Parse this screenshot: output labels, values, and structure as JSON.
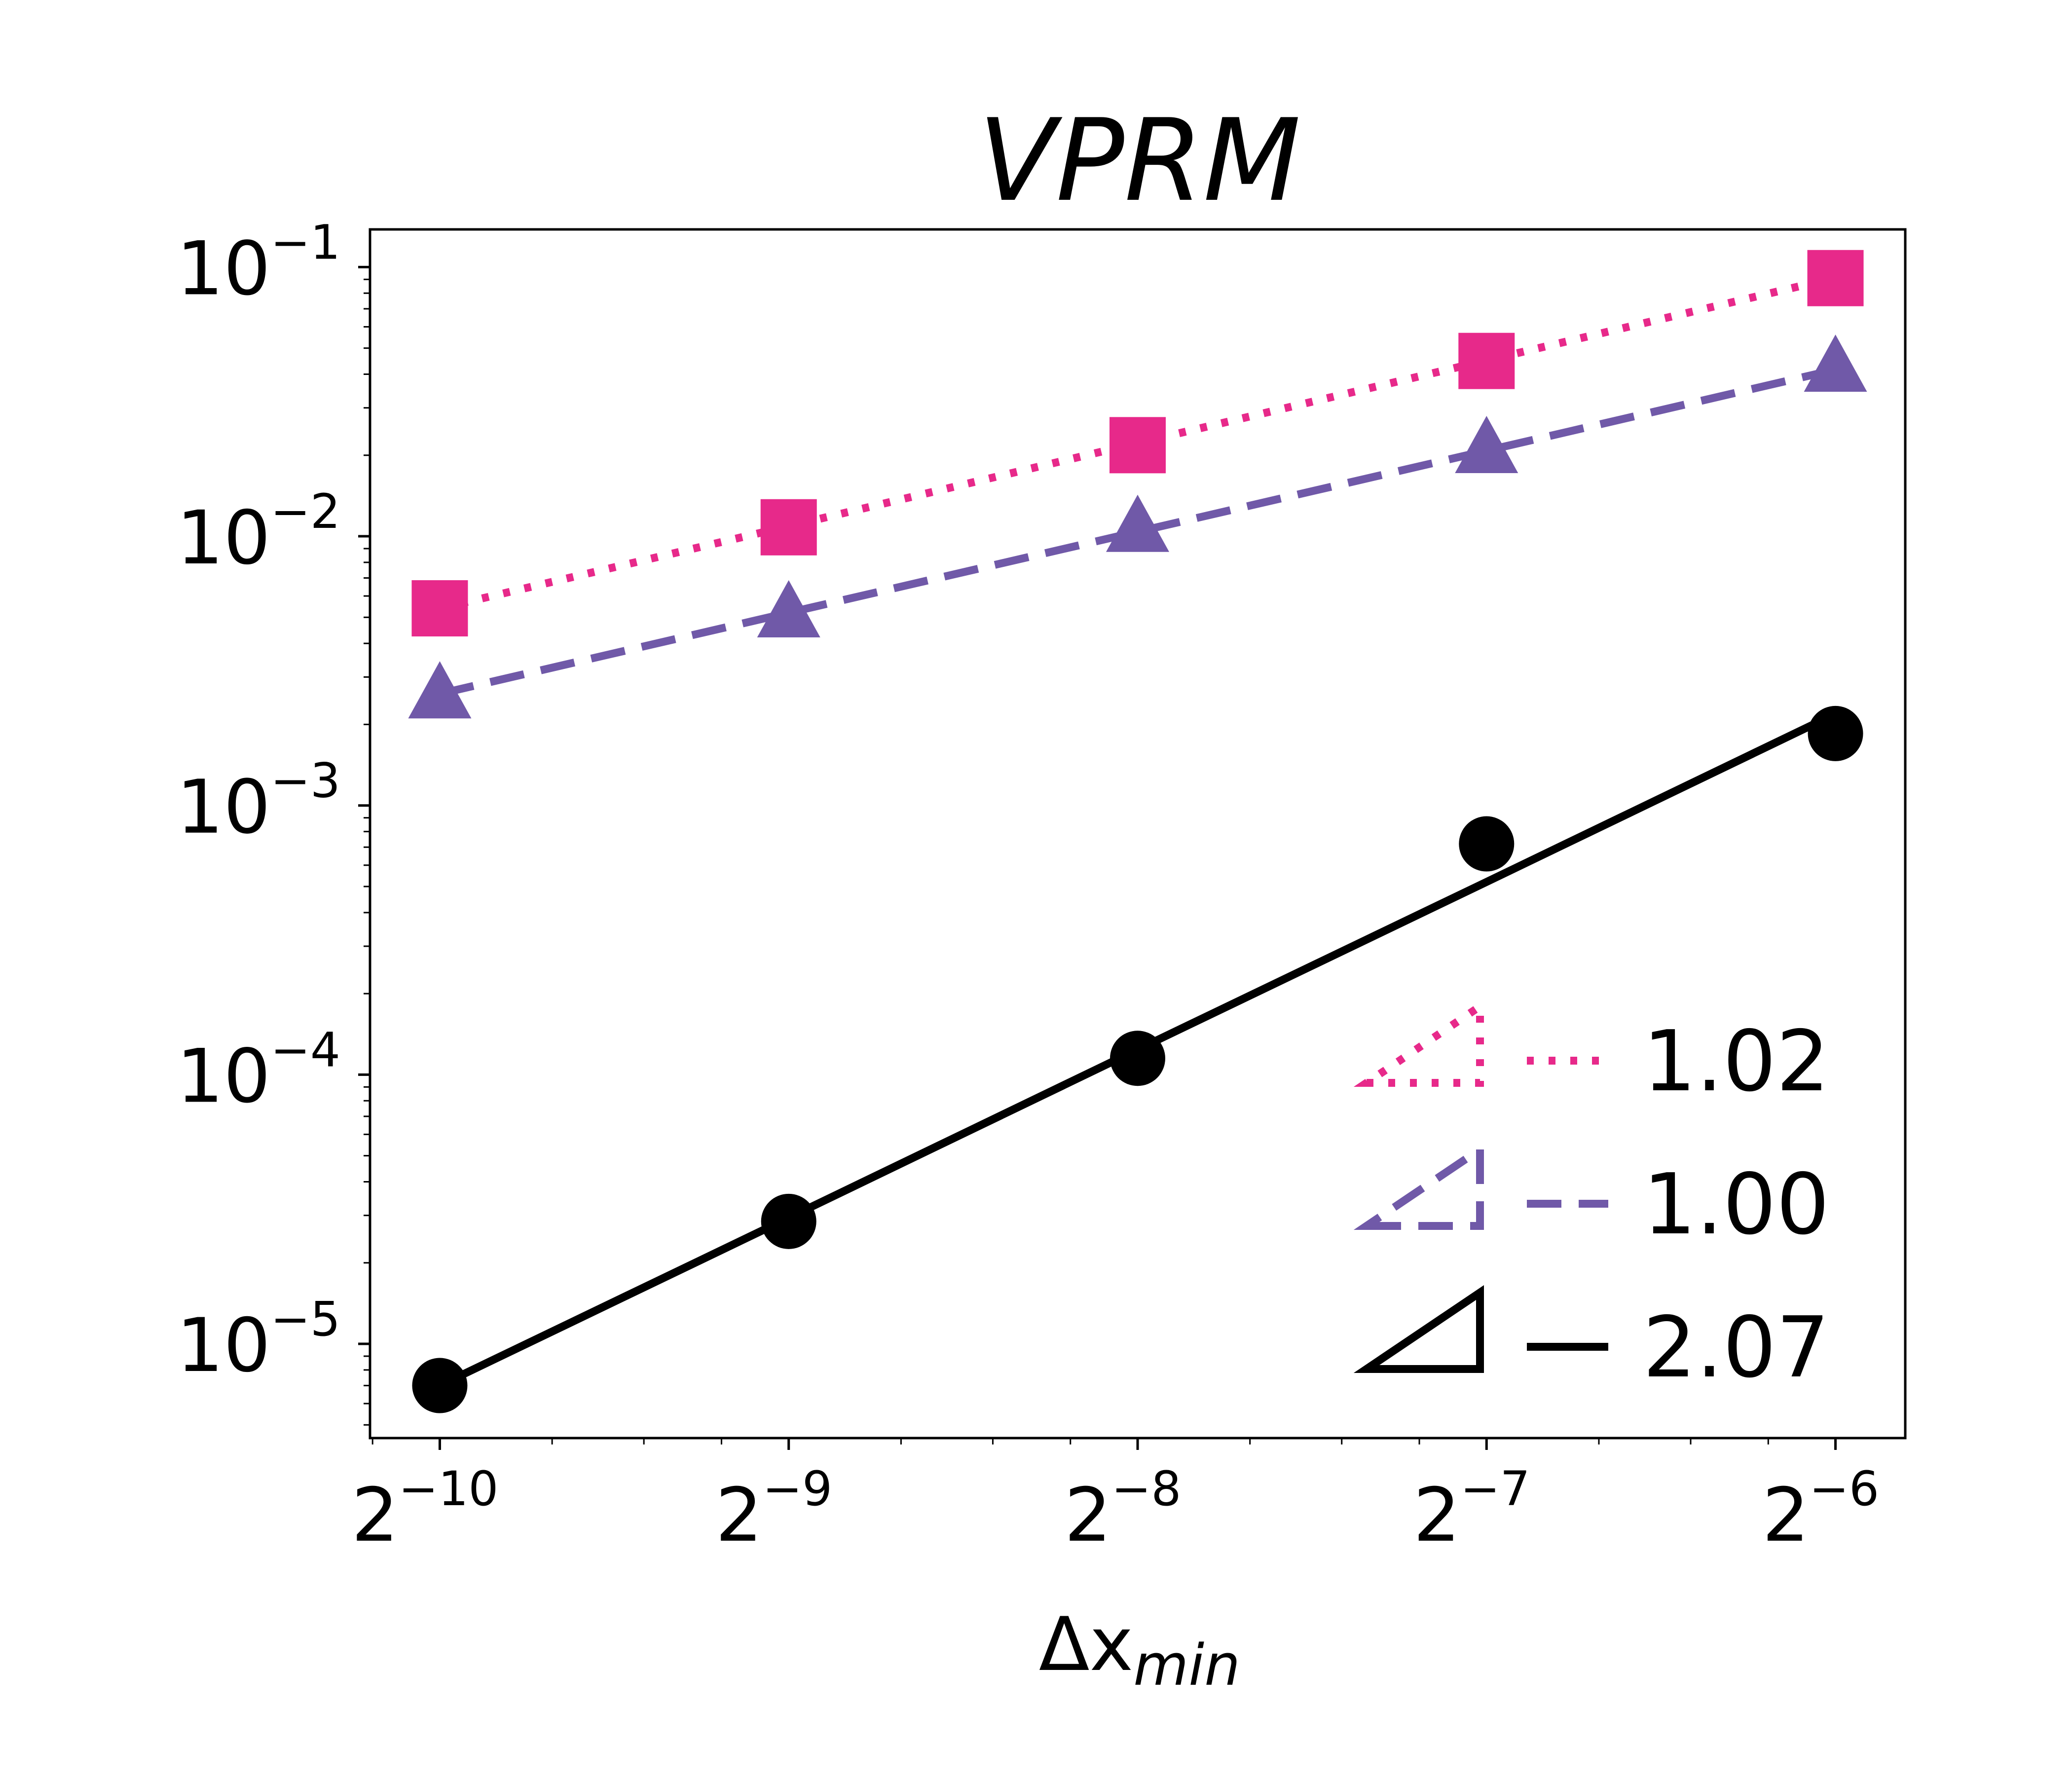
{
  "chart_data": {
    "type": "line",
    "title": "VPRM",
    "xlabel": {
      "main": "Δx",
      "sub": "min"
    },
    "ylabel": "",
    "xscale": "log2",
    "yscale": "log10",
    "xlim": [
      -10.2,
      -5.8
    ],
    "ylim": [
      -5.35,
      -0.86
    ],
    "xticks": [
      {
        "exp": -10,
        "base": "2",
        "label": "−10"
      },
      {
        "exp": -9,
        "base": "2",
        "label": "−9"
      },
      {
        "exp": -8,
        "base": "2",
        "label": "−8"
      },
      {
        "exp": -7,
        "base": "2",
        "label": "−7"
      },
      {
        "exp": -6,
        "base": "2",
        "label": "−6"
      }
    ],
    "yticks": [
      {
        "exp": -1,
        "base": "10",
        "label": "−1"
      },
      {
        "exp": -2,
        "base": "10",
        "label": "−2"
      },
      {
        "exp": -3,
        "base": "10",
        "label": "−3"
      },
      {
        "exp": -4,
        "base": "10",
        "label": "−4"
      },
      {
        "exp": -5,
        "base": "10",
        "label": "−5"
      }
    ],
    "x": [
      0.0009765625,
      0.001953125,
      0.00390625,
      0.0078125,
      0.015625
    ],
    "series": [
      {
        "name": "pink-squares",
        "color": "#e7298a",
        "marker": "square",
        "linestyle": "dotted",
        "values": [
          0.0054,
          0.0108,
          0.0218,
          0.0448,
          0.091
        ],
        "fit": [
          0.0054,
          0.0109,
          0.0222,
          0.045,
          0.0913
        ],
        "slope_label": "1.02"
      },
      {
        "name": "purple-triangles",
        "color": "#7059a8",
        "marker": "triangle",
        "linestyle": "dashed",
        "values": [
          0.0026,
          0.0052,
          0.0108,
          0.0212,
          0.0425
        ],
        "fit": [
          0.0026,
          0.0052,
          0.0104,
          0.0208,
          0.0416
        ],
        "slope_label": "1.00"
      },
      {
        "name": "black-circles",
        "color": "#000000",
        "marker": "circle",
        "linestyle": "solid",
        "values": [
          7e-06,
          2.85e-05,
          0.000115,
          0.00072,
          0.00185
        ],
        "fit": [
          7e-06,
          2.94e-05,
          0.000124,
          0.00052,
          0.00219
        ],
        "slope_label": "2.07"
      }
    ],
    "legend": {
      "placement": "bottom-right",
      "entries": [
        {
          "label": "1.02",
          "color": "#e7298a",
          "linestyle": "dotted"
        },
        {
          "label": "1.00",
          "color": "#7059a8",
          "linestyle": "dashed"
        },
        {
          "label": "2.07",
          "color": "#000000",
          "linestyle": "solid"
        }
      ]
    }
  }
}
